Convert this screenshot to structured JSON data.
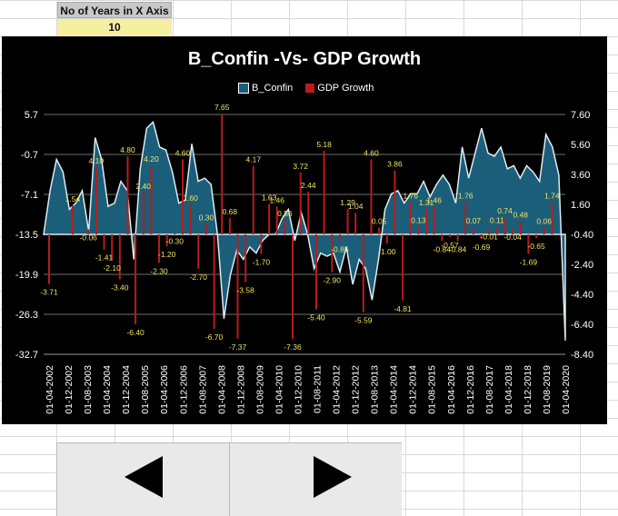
{
  "sheet": {
    "label": "No of Years in X Axis",
    "value": "10"
  },
  "chart_data": {
    "type": "area",
    "title": "B_Confin -Vs- GDP Growth",
    "legend": [
      "B_Confin",
      "GDP Growth"
    ],
    "legend_position": "top",
    "colors": {
      "area": "#1b5e7a",
      "bar": "#b81c1c"
    },
    "y_left": {
      "ticks": [
        "5.7",
        "-0.7",
        "-7.1",
        "-13.5",
        "-19.9",
        "-26.3",
        "-32.7"
      ],
      "range": [
        -32.7,
        5.7
      ]
    },
    "y_right": {
      "ticks": [
        "7.60",
        "5.60",
        "3.60",
        "1.60",
        "-0.40",
        "-2.40",
        "-4.40",
        "-6.40",
        "-8.40"
      ],
      "range": [
        -8.4,
        7.6
      ]
    },
    "x_tick_labels": [
      "01-04-2002",
      "01-12-2002",
      "01-08-2003",
      "01-04-2004",
      "01-12-2004",
      "01-08-2005",
      "01-04-2006",
      "01-12-2006",
      "01-08-2007",
      "01-04-2008",
      "01-12-2008",
      "01-08-2009",
      "01-04-2010",
      "01-12-2010",
      "01-08-2011",
      "01-04-2012",
      "01-12-2012",
      "01-08-2013",
      "01-04-2014",
      "01-12-2014",
      "01-08-2015",
      "01-04-2016",
      "01-12-2016",
      "01-08-2017",
      "01-04-2018",
      "01-12-2018",
      "01-08-2019",
      "01-04-2020"
    ],
    "b_confin": [
      -13.5,
      -6.5,
      -1.5,
      -3.5,
      -9.5,
      -8.5,
      -6.5,
      -13.0,
      2.0,
      -1.5,
      -9.0,
      -8.5,
      -5.0,
      -6.5,
      -17.5,
      -3.0,
      3.5,
      4.5,
      0.5,
      0.0,
      -3.5,
      -8.5,
      -8.0,
      1.0,
      -5.0,
      -4.5,
      -5.5,
      -13.5,
      -27.0,
      -20.0,
      -16.0,
      -17.5,
      -15.5,
      -16.5,
      -14.5,
      -13.5,
      -13.5,
      -11.0,
      -9.5,
      -14.5,
      -10.0,
      -13.5,
      -19.0,
      -16.5,
      -17.0,
      -16.5,
      -19.5,
      -15.5,
      -21.5,
      -17.5,
      -19.0,
      -24.0,
      -17.5,
      -9.5,
      -7.0,
      -6.5,
      -8.5,
      -7.0,
      -7.0,
      -5.0,
      -7.5,
      -5.5,
      -4.0,
      -5.5,
      -8.5,
      0.5,
      -4.5,
      -0.5,
      3.5,
      -0.5,
      -1.0,
      0.5,
      -3.0,
      -2.5,
      -4.5,
      -2.5,
      -3.5,
      -5.0,
      2.5,
      0.5,
      -4.0,
      -30.5
    ],
    "gdp_growth": [
      -3.71,
      0.0,
      0.0,
      1.54,
      0.0,
      -0.06,
      4.1,
      -1.41,
      -2.1,
      -3.4,
      4.8,
      -6.4,
      2.4,
      4.2,
      -2.3,
      -1.2,
      -0.3,
      4.6,
      1.6,
      -2.7,
      0.3,
      -6.7,
      7.65,
      0.68,
      -7.37,
      -3.58,
      4.17,
      -1.7,
      1.63,
      1.46,
      0.56,
      -7.36,
      3.72,
      2.44,
      -5.4,
      5.18,
      -2.9,
      -0.85,
      1.29,
      1.04,
      -5.59,
      4.6,
      0.05,
      -1.0,
      3.86,
      -4.81,
      1.76,
      0.13,
      1.31,
      1.46,
      -0.84,
      -0.57,
      -0.84,
      1.76,
      0.07,
      -0.69,
      -0.01,
      0.11,
      0.74,
      -0.04,
      0.48,
      -1.69,
      -0.65,
      0.06,
      1.74,
      0.0
    ],
    "gdp_labels": [
      "-3.71",
      "1.54",
      "-0.06",
      "4.10",
      "-1.41",
      "-2.10",
      "-3.40",
      "4.80",
      "-6.40",
      "2.40",
      "4.20",
      "-2.30",
      "-1.20",
      "-0.30",
      "4.60",
      "1.60",
      "-2.70",
      "0.30",
      "-6.70",
      "7.65",
      "0.68",
      "-7.37",
      "-3.58",
      "4.17",
      "-1.70",
      "1.63",
      "1.46",
      "0.56",
      "-7.36",
      "3.72",
      "2.44",
      "-5.40",
      "5.18",
      "-2.90",
      "-0.85",
      "1.29",
      "1.04",
      "-5.59",
      "4.60",
      "0.05",
      "-1.00",
      "3.86",
      "-4.81",
      "1.76",
      "0.13",
      "1.31",
      "1.46",
      "-0.84",
      "-0.57",
      "-0.84",
      "1.76",
      "0.07",
      "-0.69",
      "-0.01",
      "0.11",
      "0.74",
      "-0.04",
      "0.48",
      "-1.69",
      "-0.65",
      "0.06",
      "1.74"
    ],
    "grid": true
  },
  "buttons": {
    "prev": "previous-period",
    "next": "next-period"
  }
}
